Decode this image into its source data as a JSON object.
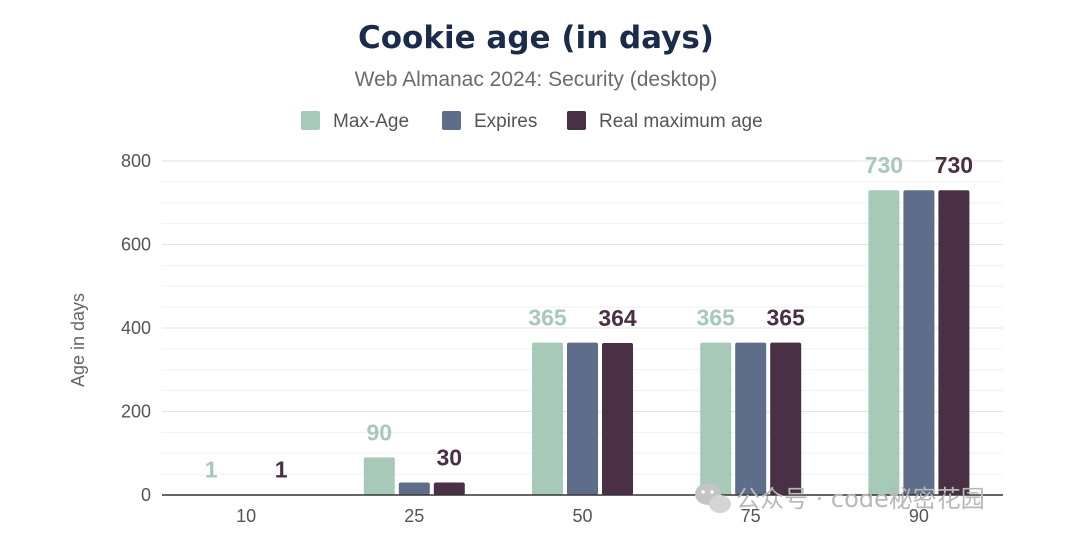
{
  "chart_data": {
    "type": "bar",
    "title": "Cookie age (in days)",
    "subtitle": "Web Almanac 2024: Security (desktop)",
    "xlabel": "",
    "ylabel": "Age in days",
    "categories": [
      "10",
      "25",
      "50",
      "75",
      "90"
    ],
    "ylim": [
      0,
      800
    ],
    "yticks": [
      "0",
      "200",
      "400",
      "600",
      "800"
    ],
    "grid": true,
    "legend_position": "top-center",
    "series": [
      {
        "name": "Max-Age",
        "values": [
          1,
          90,
          365,
          365,
          730
        ],
        "color": "#a6c9b8",
        "labels": [
          "1",
          "90",
          "365",
          "365",
          "730"
        ]
      },
      {
        "name": "Expires",
        "values": [
          0,
          30,
          365,
          365,
          730
        ],
        "color": "#5e6e8a",
        "labels": [
          "",
          "",
          "",
          "",
          ""
        ]
      },
      {
        "name": "Real maximum age",
        "values": [
          1,
          30,
          364,
          365,
          730
        ],
        "color": "#4a3044",
        "labels": [
          "1",
          "30",
          "364",
          "365",
          "730"
        ]
      }
    ]
  },
  "watermark": {
    "text": "公众号 · code秘密花园",
    "icon": "wechat-icon"
  }
}
